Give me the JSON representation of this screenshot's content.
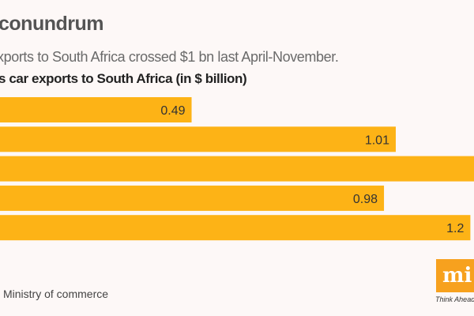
{
  "title": "conundrum",
  "subtitle": "xports to South Africa crossed $1 bn last April-November.",
  "source": "Ministry of commerce",
  "logo": {
    "text": "mi",
    "tagline": "Think Ahead. T"
  },
  "colors": {
    "bar": "#fdb316",
    "logo": "#f7a11e"
  },
  "chart_data": {
    "type": "bar",
    "orientation": "horizontal",
    "title": "s car exports to South Africa (in $ billion)",
    "values": [
      0.49,
      1.01,
      null,
      0.98,
      1.2
    ],
    "labels": [
      "0.49",
      "1.01",
      "",
      "0.98",
      "1.2"
    ],
    "grid": false
  }
}
